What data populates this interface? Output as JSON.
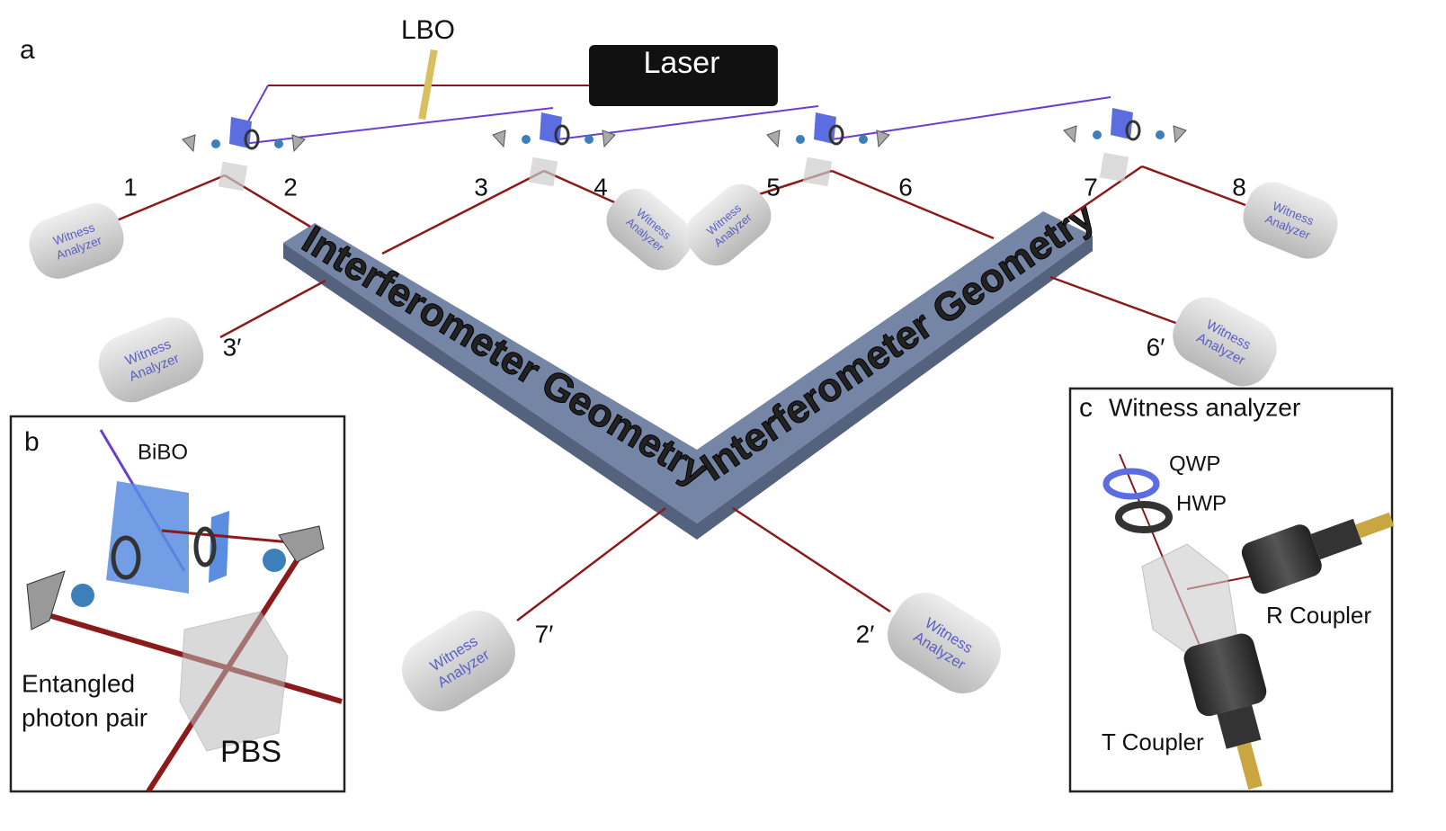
{
  "panel_a": {
    "label": "a",
    "lbo": "LBO",
    "laser": "Laser",
    "ports": [
      "1",
      "2",
      "3",
      "4",
      "5",
      "6",
      "7",
      "8"
    ],
    "primed_ports": [
      "3′",
      "6′",
      "7′",
      "2′"
    ],
    "analyzers": [
      [
        "Witness",
        "Analyzer"
      ],
      [
        "Witness",
        "Analyzer"
      ],
      [
        "Witness",
        "Analyzer"
      ],
      [
        "Witness",
        "Analyzer"
      ],
      [
        "Witness",
        "Analyzer"
      ],
      [
        "Witness",
        "Analyzer"
      ],
      [
        "Witness",
        "Analyzer"
      ],
      [
        "Witness",
        "Analyzer"
      ]
    ],
    "geometry_labels": [
      "Interferometer Geometry",
      "Interferometer Geometry"
    ]
  },
  "panel_b": {
    "label": "b",
    "bibo": "BiBO",
    "entangled": [
      "Entangled",
      "photon pair"
    ],
    "pbs": "PBS"
  },
  "panel_c": {
    "label": "c",
    "title": "Witness analyzer",
    "qwp": "QWP",
    "hwp": "HWP",
    "r_coupler": "R Coupler",
    "t_coupler": "T Coupler"
  }
}
